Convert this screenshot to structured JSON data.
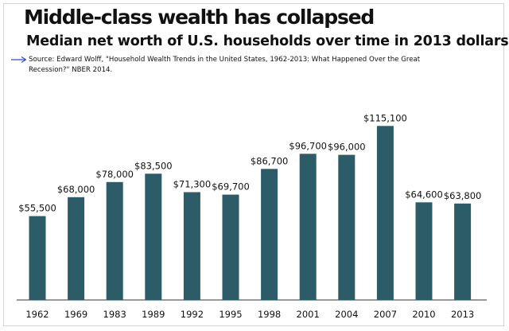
{
  "header": {
    "title": "Middle-class wealth has collapsed",
    "subtitle": "Median net worth of U.S. households over time in 2013 dollars",
    "source": "Source: Edward Wolff, \"Household Wealth Trends in the United States, 1962-2013: What Happened Over the Great Recession?\" NBER 2014.",
    "arrow_icon": "arrow-right-icon"
  },
  "colors": {
    "bar": "#2b5c68",
    "text": "#111111",
    "axis": "#333333",
    "arrow": "#2f4bd8"
  },
  "chart_data": {
    "type": "bar",
    "title": "Middle-class wealth has collapsed",
    "subtitle": "Median net worth of U.S. households over time in 2013 dollars",
    "categories": [
      "1962",
      "1969",
      "1983",
      "1989",
      "1992",
      "1995",
      "1998",
      "2001",
      "2004",
      "2007",
      "2010",
      "2013"
    ],
    "values": [
      55500,
      68000,
      78000,
      83500,
      71300,
      69700,
      86700,
      96700,
      96000,
      115100,
      64600,
      63800
    ],
    "data_labels": [
      "$55,500",
      "$68,000",
      "$78,000",
      "$83,500",
      "$71,300",
      "$69,700",
      "$86,700",
      "$96,700",
      "$96,000",
      "$115,100",
      "$64,600",
      "$63,800"
    ],
    "xlabel": "",
    "ylabel": "",
    "ylim": [
      0,
      120000
    ],
    "grid": false,
    "legend": "none"
  }
}
